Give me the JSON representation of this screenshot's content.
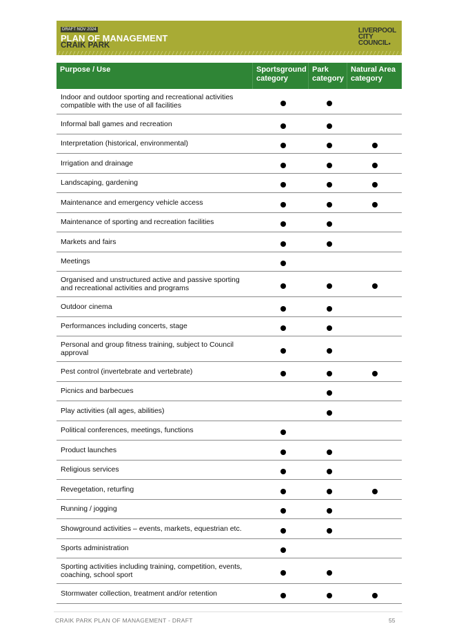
{
  "banner": {
    "draft": "DRAFT NOV 2024",
    "title": "PLAN OF MANAGEMENT",
    "subtitle": "CRAIK PARK",
    "logo": "LIVERPOOL CITY COUNCIL"
  },
  "table": {
    "headers": [
      "Purpose / Use",
      "Sportsground category",
      "Park category",
      "Natural Area category"
    ],
    "rows": [
      {
        "label": "Indoor and outdoor sporting and recreational activities compatible with the use of all facilities",
        "marks": [
          true,
          true,
          false
        ]
      },
      {
        "label": "Informal ball games and recreation",
        "marks": [
          true,
          true,
          false
        ]
      },
      {
        "label": "Interpretation (historical, environmental)",
        "marks": [
          true,
          true,
          true
        ]
      },
      {
        "label": "Irrigation and drainage",
        "marks": [
          true,
          true,
          true
        ]
      },
      {
        "label": "Landscaping, gardening",
        "marks": [
          true,
          true,
          true
        ]
      },
      {
        "label": "Maintenance and emergency vehicle access",
        "marks": [
          true,
          true,
          true
        ]
      },
      {
        "label": "Maintenance of sporting and recreation facilities",
        "marks": [
          true,
          true,
          false
        ]
      },
      {
        "label": "Markets and fairs",
        "marks": [
          true,
          true,
          false
        ]
      },
      {
        "label": "Meetings",
        "marks": [
          true,
          false,
          false
        ]
      },
      {
        "label": "Organised and unstructured active and passive sporting and recreational activities and programs",
        "marks": [
          true,
          true,
          true
        ]
      },
      {
        "label": "Outdoor cinema",
        "marks": [
          true,
          true,
          false
        ]
      },
      {
        "label": "Performances including concerts, stage",
        "marks": [
          true,
          true,
          false
        ]
      },
      {
        "label": "Personal and group fitness training, subject to Council approval",
        "marks": [
          true,
          true,
          false
        ]
      },
      {
        "label": "Pest control (invertebrate and vertebrate)",
        "marks": [
          true,
          true,
          true
        ]
      },
      {
        "label": "Picnics and barbecues",
        "marks": [
          false,
          true,
          false
        ]
      },
      {
        "label": "Play activities (all ages, abilities)",
        "marks": [
          false,
          true,
          false
        ]
      },
      {
        "label": "Political conferences, meetings, functions",
        "marks": [
          true,
          false,
          false
        ]
      },
      {
        "label": "Product launches",
        "marks": [
          true,
          true,
          false
        ]
      },
      {
        "label": "Religious services",
        "marks": [
          true,
          true,
          false
        ]
      },
      {
        "label": "Revegetation, returfing",
        "marks": [
          true,
          true,
          true
        ]
      },
      {
        "label": "Running / jogging",
        "marks": [
          true,
          true,
          false
        ]
      },
      {
        "label": "Showground activities – events, markets, equestrian etc.",
        "marks": [
          true,
          true,
          false
        ]
      },
      {
        "label": "Sports administration",
        "marks": [
          true,
          false,
          false
        ]
      },
      {
        "label": "Sporting activities including training, competition, events, coaching, school sport",
        "marks": [
          true,
          true,
          false
        ]
      },
      {
        "label": "Stormwater collection, treatment and/or retention",
        "marks": [
          true,
          true,
          true
        ]
      }
    ]
  },
  "footer": {
    "text": "CRAIK PARK PLAN OF MANAGEMENT - DRAFT",
    "page": "55"
  }
}
